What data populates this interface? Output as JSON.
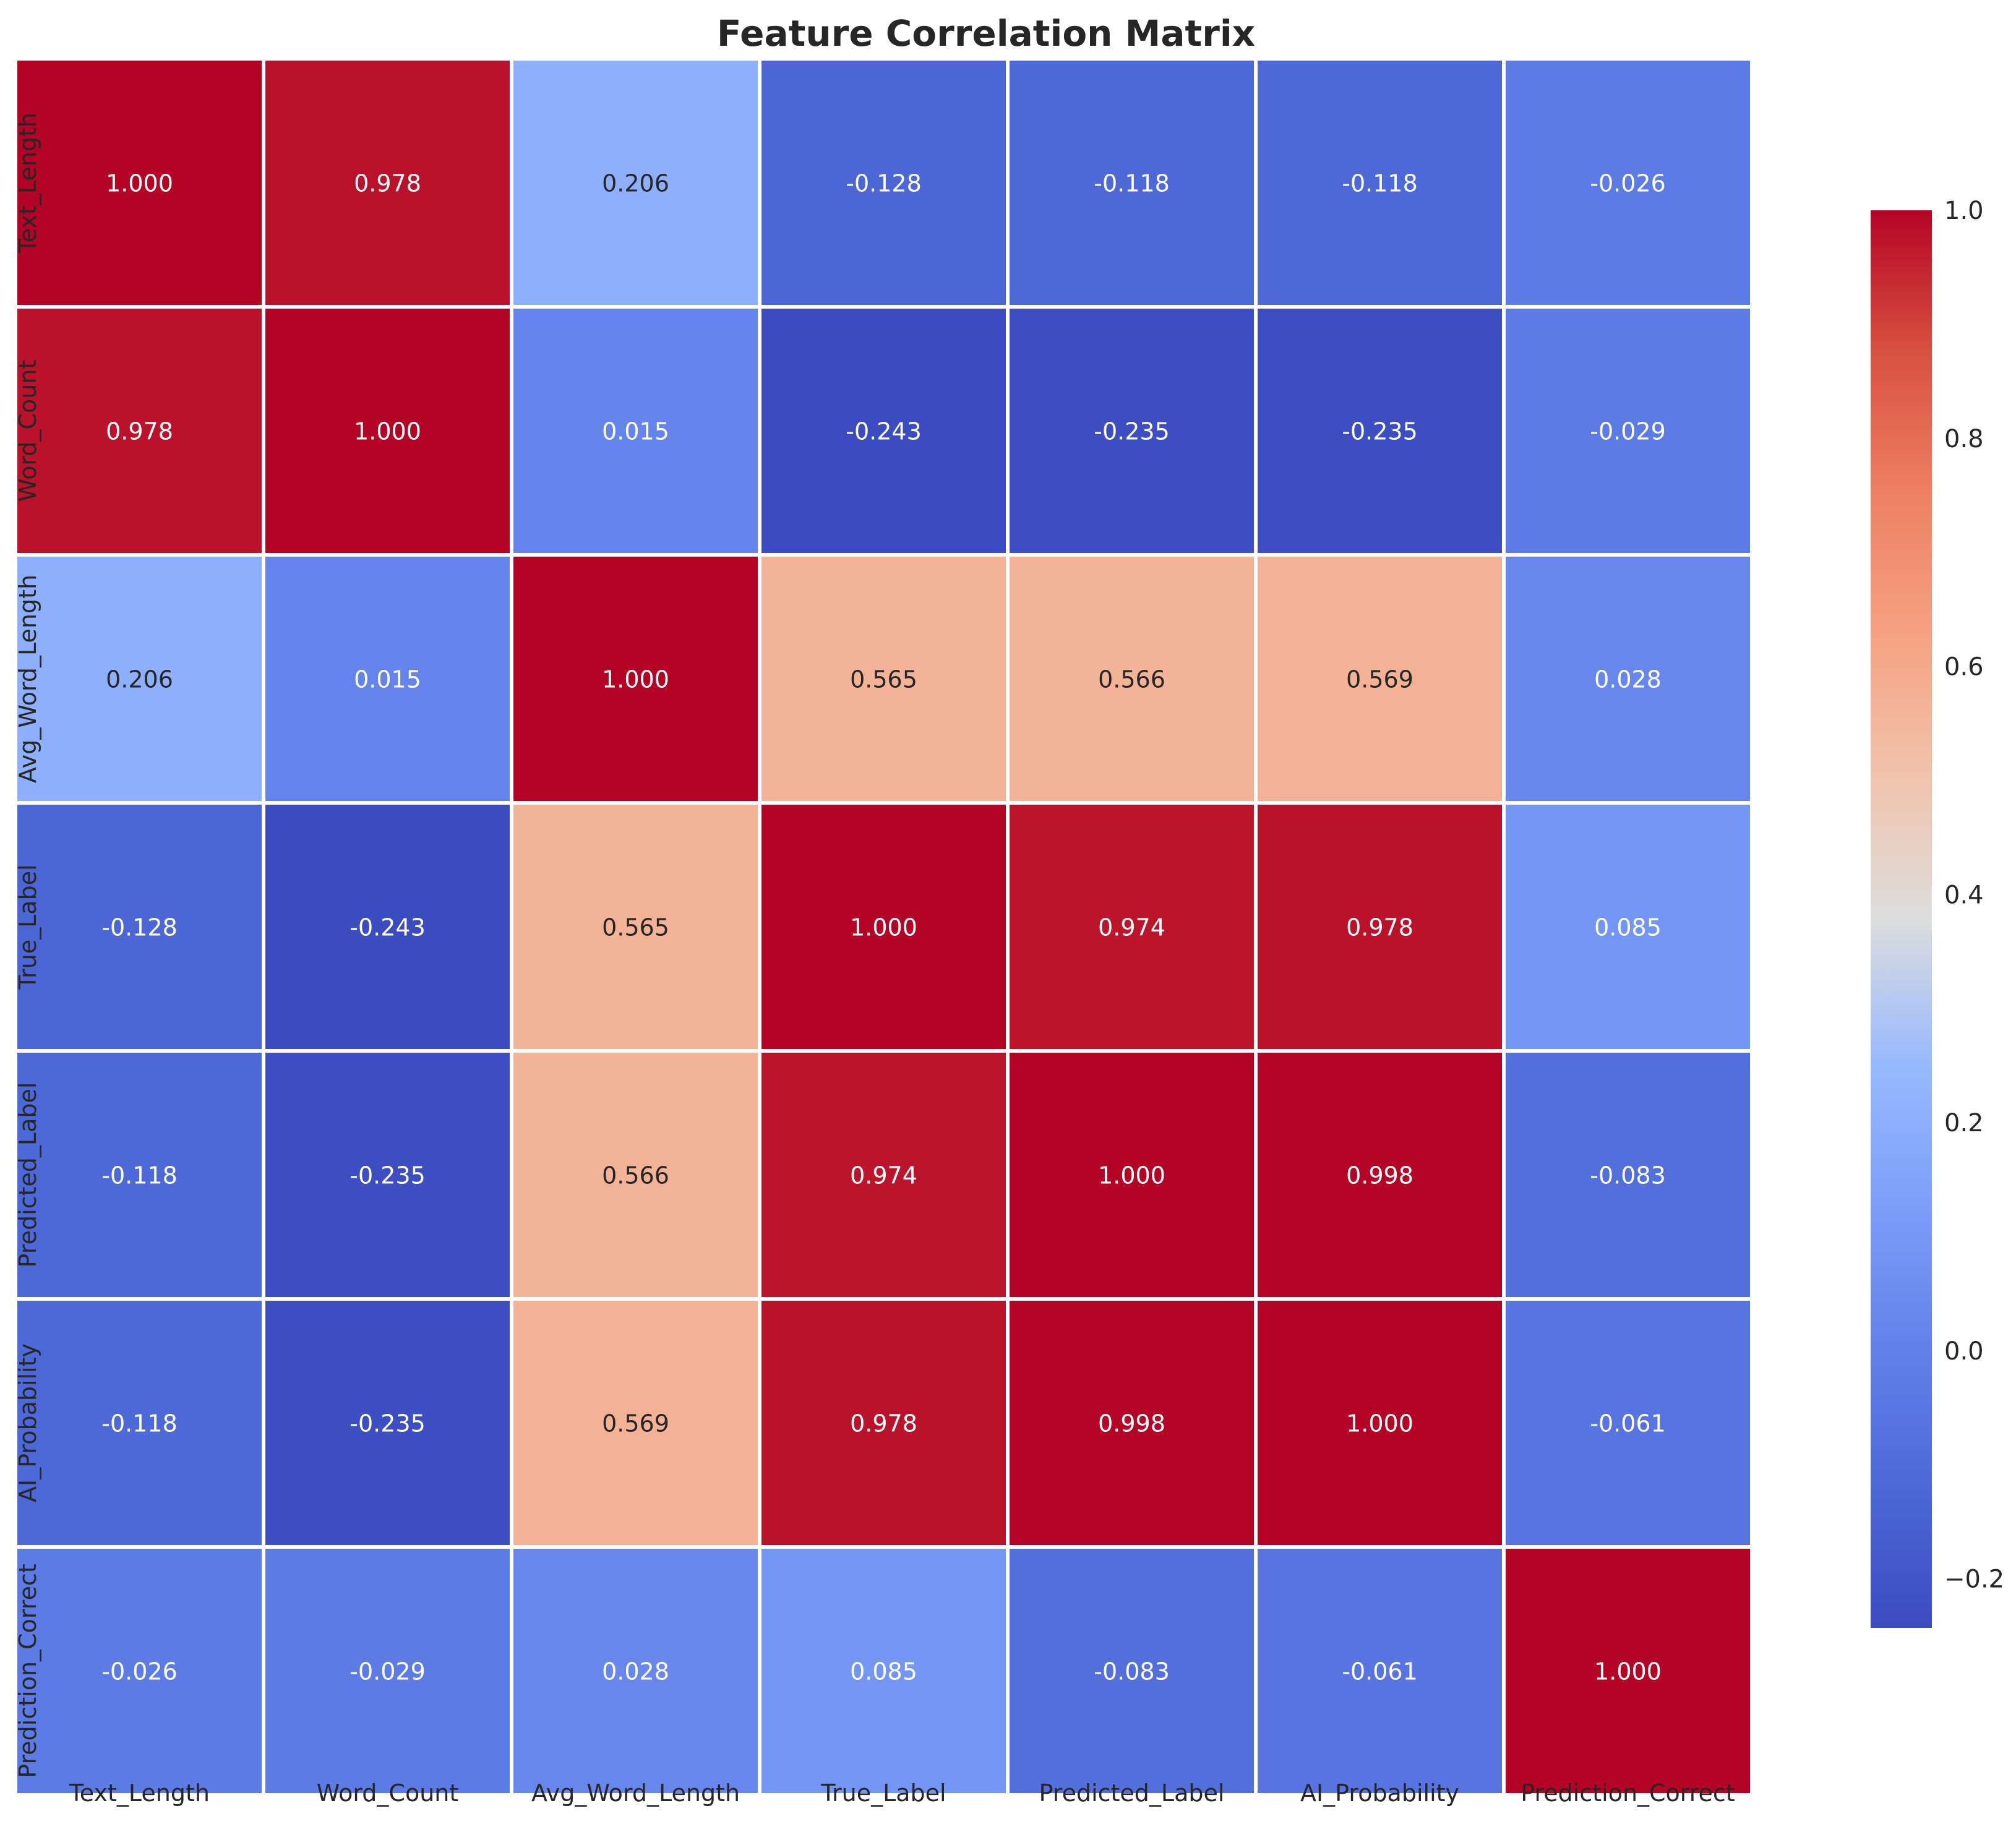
{
  "chart_data": {
    "type": "heatmap",
    "title": "Feature Correlation Matrix",
    "xlabel": "",
    "ylabel": "",
    "x_labels": [
      "Text_Length",
      "Word_Count",
      "Avg_Word_Length",
      "True_Label",
      "Predicted_Label",
      "AI_Probability",
      "Prediction_Correct"
    ],
    "y_labels": [
      "Text_Length",
      "Word_Count",
      "Avg_Word_Length",
      "True_Label",
      "Predicted_Label",
      "AI_Probability",
      "Prediction_Correct"
    ],
    "values": [
      [
        1.0,
        0.978,
        0.206,
        -0.128,
        -0.118,
        -0.118,
        -0.026
      ],
      [
        0.978,
        1.0,
        0.015,
        -0.243,
        -0.235,
        -0.235,
        -0.029
      ],
      [
        0.206,
        0.015,
        1.0,
        0.565,
        0.566,
        0.569,
        0.028
      ],
      [
        -0.128,
        -0.243,
        0.565,
        1.0,
        0.974,
        0.978,
        0.085
      ],
      [
        -0.118,
        -0.235,
        0.566,
        0.974,
        1.0,
        0.998,
        -0.083
      ],
      [
        -0.118,
        -0.235,
        0.569,
        0.978,
        0.998,
        1.0,
        -0.061
      ],
      [
        -0.026,
        -0.029,
        0.028,
        0.085,
        -0.083,
        -0.061,
        1.0
      ]
    ],
    "value_labels": [
      [
        "1.000",
        "0.978",
        "0.206",
        "-0.128",
        "-0.118",
        "-0.118",
        "-0.026"
      ],
      [
        "0.978",
        "1.000",
        "0.015",
        "-0.243",
        "-0.235",
        "-0.235",
        "-0.029"
      ],
      [
        "0.206",
        "0.015",
        "1.000",
        "0.565",
        "0.566",
        "0.569",
        "0.028"
      ],
      [
        "-0.128",
        "-0.243",
        "0.565",
        "1.000",
        "0.974",
        "0.978",
        "0.085"
      ],
      [
        "-0.118",
        "-0.235",
        "0.566",
        "0.974",
        "1.000",
        "0.998",
        "-0.083"
      ],
      [
        "-0.118",
        "-0.235",
        "0.569",
        "0.978",
        "0.998",
        "1.000",
        "-0.061"
      ],
      [
        "-0.026",
        "-0.029",
        "0.028",
        "0.085",
        "-0.083",
        "-0.061",
        "1.000"
      ]
    ],
    "colormap": "coolwarm",
    "color_range": [
      -0.243,
      1.0
    ],
    "colorbar_ticks": [
      -0.2,
      0.0,
      0.2,
      0.4,
      0.6,
      0.8,
      1.0
    ],
    "colorbar_tick_labels": [
      "−0.2",
      "0.0",
      "0.2",
      "0.4",
      "0.6",
      "0.8",
      "1.0"
    ],
    "grid": false,
    "colorbar": "right"
  }
}
